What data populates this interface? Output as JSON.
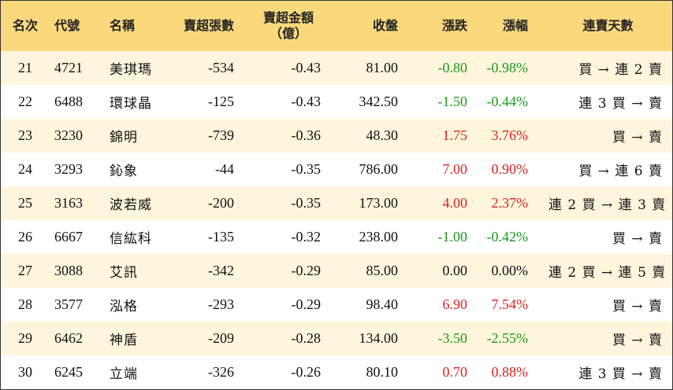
{
  "headers": {
    "rank": "名次",
    "code": "代號",
    "name": "名稱",
    "sell_lots": "賣超張數",
    "sell_amount_line1": "賣超金額",
    "sell_amount_line2": "（億）",
    "close": "收盤",
    "change": "漲跌",
    "change_pct": "漲幅",
    "streak": "連賣天數"
  },
  "colors": {
    "header_bg": "#f9d97c",
    "row_alt_bg": "#fdf6dc",
    "up": "#e02020",
    "down": "#1a9a1a"
  },
  "rows": [
    {
      "rank": "21",
      "code": "4721",
      "name": "美琪瑪",
      "sell_lots": "-534",
      "sell_amount": "-0.43",
      "close": "81.00",
      "change": "-0.80",
      "change_pct": "-0.98%",
      "streak": "買 → 連 2 賣",
      "trend": "down"
    },
    {
      "rank": "22",
      "code": "6488",
      "name": "環球晶",
      "sell_lots": "-125",
      "sell_amount": "-0.43",
      "close": "342.50",
      "change": "-1.50",
      "change_pct": "-0.44%",
      "streak": "連 3 買 → 賣",
      "trend": "down"
    },
    {
      "rank": "23",
      "code": "3230",
      "name": "錦明",
      "sell_lots": "-739",
      "sell_amount": "-0.36",
      "close": "48.30",
      "change": "1.75",
      "change_pct": "3.76%",
      "streak": "買 → 賣",
      "trend": "up"
    },
    {
      "rank": "24",
      "code": "3293",
      "name": "鈊象",
      "sell_lots": "-44",
      "sell_amount": "-0.35",
      "close": "786.00",
      "change": "7.00",
      "change_pct": "0.90%",
      "streak": "買 → 連 6 賣",
      "trend": "up"
    },
    {
      "rank": "25",
      "code": "3163",
      "name": "波若威",
      "sell_lots": "-200",
      "sell_amount": "-0.35",
      "close": "173.00",
      "change": "4.00",
      "change_pct": "2.37%",
      "streak": "連 2 買 → 連 3 賣",
      "trend": "up"
    },
    {
      "rank": "26",
      "code": "6667",
      "name": "信紘科",
      "sell_lots": "-135",
      "sell_amount": "-0.32",
      "close": "238.00",
      "change": "-1.00",
      "change_pct": "-0.42%",
      "streak": "買 → 賣",
      "trend": "down"
    },
    {
      "rank": "27",
      "code": "3088",
      "name": "艾訊",
      "sell_lots": "-342",
      "sell_amount": "-0.29",
      "close": "85.00",
      "change": "0.00",
      "change_pct": "0.00%",
      "streak": "連 2 買 → 連 5 賣",
      "trend": "flat"
    },
    {
      "rank": "28",
      "code": "3577",
      "name": "泓格",
      "sell_lots": "-293",
      "sell_amount": "-0.29",
      "close": "98.40",
      "change": "6.90",
      "change_pct": "7.54%",
      "streak": "買 → 賣",
      "trend": "up"
    },
    {
      "rank": "29",
      "code": "6462",
      "name": "神盾",
      "sell_lots": "-209",
      "sell_amount": "-0.28",
      "close": "134.00",
      "change": "-3.50",
      "change_pct": "-2.55%",
      "streak": "買 → 賣",
      "trend": "down"
    },
    {
      "rank": "30",
      "code": "6245",
      "name": "立端",
      "sell_lots": "-326",
      "sell_amount": "-0.26",
      "close": "80.10",
      "change": "0.70",
      "change_pct": "0.88%",
      "streak": "連 3 買 → 賣",
      "trend": "up"
    }
  ]
}
